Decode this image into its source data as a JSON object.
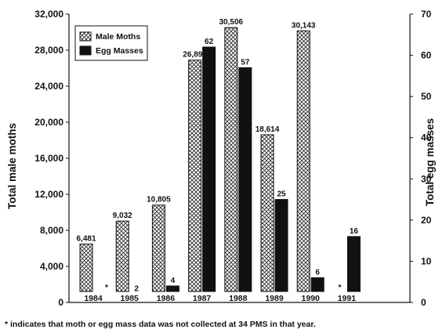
{
  "chart_data": {
    "type": "bar",
    "categories": [
      "1984",
      "1985",
      "1986",
      "1987",
      "1988",
      "1989",
      "1990",
      "1991"
    ],
    "series": [
      {
        "name": "Male Moths",
        "axis": "left",
        "pattern": "crosshatch",
        "values": [
          6481,
          9032,
          10805,
          26892,
          30506,
          18614,
          30143,
          null
        ],
        "labels": [
          "6,481",
          "9,032",
          "10,805",
          "26,892",
          "30,506",
          "18,614",
          "30,143",
          "*"
        ]
      },
      {
        "name": "Egg Masses",
        "axis": "right",
        "pattern": "solid",
        "values": [
          null,
          2,
          4,
          62,
          57,
          25,
          6,
          16
        ],
        "labels": [
          "*",
          "2",
          "4",
          "62",
          "57",
          "25",
          "6",
          "16"
        ]
      }
    ],
    "ylabel": "Total male moths",
    "y2label": "Total egg masses",
    "ylim": [
      0,
      32000
    ],
    "y2lim": [
      0,
      70
    ],
    "yticks": [
      "0",
      "4,000",
      "8,000",
      "12,000",
      "16,000",
      "20,000",
      "24,000",
      "28,000",
      "32,000"
    ],
    "y2ticks": [
      "0",
      "10",
      "20",
      "30",
      "40",
      "50",
      "60",
      "70"
    ],
    "legend_position": "top-left",
    "grid": false,
    "footnote": "* indicates that moth or egg mass data was not collected at 34 PMS in that year."
  }
}
